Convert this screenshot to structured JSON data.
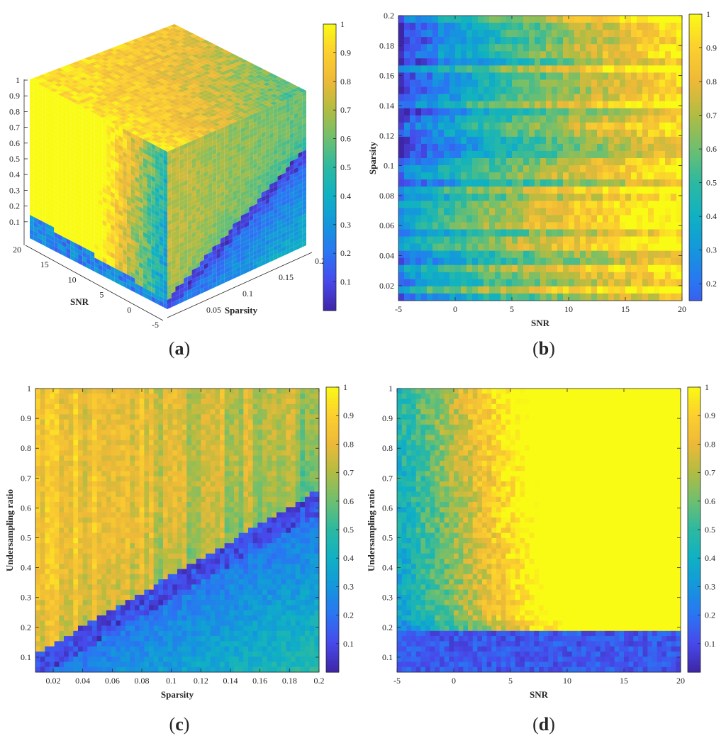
{
  "captions": [
    "(a)",
    "(b)",
    "(c)",
    "(d)"
  ],
  "caption_parts": [
    {
      "open": "(",
      "letter": "a",
      "close": ")"
    },
    {
      "open": "(",
      "letter": "b",
      "close": ")"
    },
    {
      "open": "(",
      "letter": "c",
      "close": ")"
    },
    {
      "open": "(",
      "letter": "d",
      "close": ")"
    }
  ],
  "chart_data": [
    {
      "id": "a",
      "type": "heatmap",
      "projection": "3d-cube",
      "xlabel": "SNR",
      "ylabel": "Sparsity",
      "zlabel": "",
      "x_ticks": [
        "-5",
        "0",
        "5",
        "10",
        "15",
        "20"
      ],
      "y_ticks": [
        "0.05",
        "0.1",
        "0.15",
        "0.2"
      ],
      "z_ticks": [
        "0.1",
        "0.2",
        "0.3",
        "0.4",
        "0.5",
        "0.6",
        "0.7",
        "0.8",
        "0.9",
        "1"
      ],
      "xlim": [
        -5,
        20
      ],
      "ylim": [
        0,
        0.2
      ],
      "zlim": [
        0,
        1
      ],
      "colorbar": {
        "range": [
          0,
          1
        ],
        "ticks": [
          "0.1",
          "0.2",
          "0.3",
          "0.4",
          "0.5",
          "0.6",
          "0.7",
          "0.8",
          "0.9",
          "1"
        ],
        "colormap": "parula"
      },
      "description_of_faces": "front face (SNR vs ratio) mostly high values; right face (sparsity vs ratio) shows low-value band; top face (SNR vs sparsity) mixed"
    },
    {
      "id": "b",
      "type": "heatmap",
      "xlabel": "SNR",
      "ylabel": "Sparsity",
      "x_ticks": [
        "-5",
        "0",
        "5",
        "10",
        "15",
        "20"
      ],
      "y_ticks": [
        "0.02",
        "0.04",
        "0.06",
        "0.08",
        "0.1",
        "0.12",
        "0.14",
        "0.16",
        "0.18",
        "0.2"
      ],
      "xlim": [
        -5,
        20
      ],
      "ylim": [
        0.01,
        0.2
      ],
      "colorbar": {
        "range": [
          0.15,
          1
        ],
        "ticks": [
          "0.2",
          "0.3",
          "0.4",
          "0.5",
          "0.6",
          "0.7",
          "0.8",
          "0.9",
          "1"
        ],
        "colormap": "parula"
      },
      "grid": {
        "cols": 50,
        "rows": 40
      },
      "pattern": "value rises with SNR and falls with sparsity; ~0.2 at SNR=-5, sparsity=0.2; ~0.95 at SNR=20, sparsity=0.02"
    },
    {
      "id": "c",
      "type": "heatmap",
      "xlabel": "Sparsity",
      "ylabel": "Undersampling ratio",
      "x_ticks": [
        "0.02",
        "0.04",
        "0.06",
        "0.08",
        "0.1",
        "0.12",
        "0.14",
        "0.16",
        "0.18",
        "0.2"
      ],
      "y_ticks": [
        "0.1",
        "0.2",
        "0.3",
        "0.4",
        "0.5",
        "0.6",
        "0.7",
        "0.8",
        "0.9",
        "1"
      ],
      "xlim": [
        0.008,
        0.2
      ],
      "ylim": [
        0.05,
        1
      ],
      "colorbar": {
        "range": [
          0,
          1
        ],
        "ticks": [
          "0.1",
          "0.2",
          "0.3",
          "0.4",
          "0.5",
          "0.6",
          "0.7",
          "0.8",
          "0.9",
          "1"
        ],
        "colormap": "parula"
      },
      "grid": {
        "cols": 60,
        "rows": 55
      },
      "pattern": "low-value (~0.05) diagonal band from (0.02, 0.05) to (0.2, 0.6); high (~0.85) above-left, ~0.3 below-right"
    },
    {
      "id": "d",
      "type": "heatmap",
      "xlabel": "SNR",
      "ylabel": "Undersampling ratio",
      "x_ticks": [
        "-5",
        "0",
        "5",
        "10",
        "15",
        "20"
      ],
      "y_ticks": [
        "0.1",
        "0.2",
        "0.3",
        "0.4",
        "0.5",
        "0.6",
        "0.7",
        "0.8",
        "0.9",
        "1"
      ],
      "xlim": [
        -5,
        20
      ],
      "ylim": [
        0.05,
        1
      ],
      "colorbar": {
        "range": [
          0,
          1
        ],
        "ticks": [
          "0.1",
          "0.2",
          "0.3",
          "0.4",
          "0.5",
          "0.6",
          "0.7",
          "0.8",
          "0.9",
          "1"
        ],
        "colormap": "parula"
      },
      "grid": {
        "cols": 60,
        "rows": 55
      },
      "pattern": "ratio below ~0.2 → ~0.1; above it value rises with SNR from ~0.4 at SNR=-5 to ~1 at SNR>=10"
    }
  ]
}
